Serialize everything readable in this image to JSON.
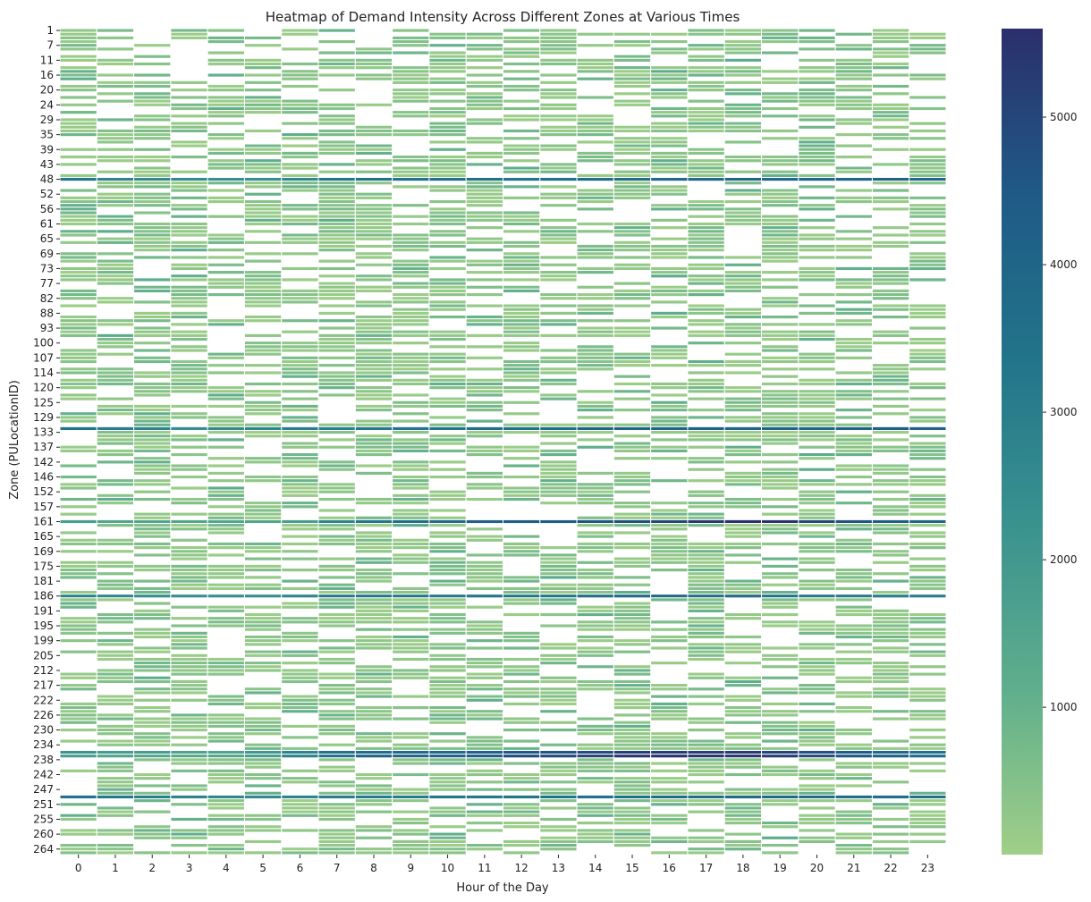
{
  "chart_data": {
    "type": "heatmap",
    "title": "Heatmap of Demand Intensity Across Different Zones at Various Times",
    "xlabel": "Hour of the Day",
    "ylabel": "Zone (PULocationID)",
    "x_categories": [
      "0",
      "1",
      "2",
      "3",
      "4",
      "5",
      "6",
      "7",
      "8",
      "9",
      "10",
      "11",
      "12",
      "13",
      "14",
      "15",
      "16",
      "17",
      "18",
      "19",
      "20",
      "21",
      "22",
      "23"
    ],
    "y_tick_labels": [
      "1",
      "7",
      "11",
      "16",
      "20",
      "24",
      "29",
      "35",
      "39",
      "43",
      "48",
      "52",
      "56",
      "61",
      "65",
      "69",
      "73",
      "77",
      "82",
      "88",
      "93",
      "100",
      "107",
      "114",
      "120",
      "125",
      "129",
      "133",
      "137",
      "142",
      "146",
      "152",
      "157",
      "161",
      "165",
      "169",
      "175",
      "181",
      "186",
      "191",
      "195",
      "199",
      "205",
      "212",
      "217",
      "222",
      "226",
      "230",
      "234",
      "238",
      "242",
      "247",
      "251",
      "255",
      "260",
      "264"
    ],
    "colorbar": {
      "min": 1,
      "max": 5600,
      "ticks": [
        "1000",
        "2000",
        "3000",
        "4000",
        "5000"
      ],
      "tick_values": [
        1000,
        2000,
        3000,
        4000,
        5000
      ],
      "colormap": "crest",
      "colors": [
        "#a0cf88",
        "#5fae8c",
        "#3a928f",
        "#22748a",
        "#1f5a86",
        "#2b2f6b"
      ]
    },
    "missing_color": "#ffffff",
    "grid_line_color": "#ffffff",
    "row_count": 222,
    "highlighted_rows": [
      {
        "zone": "48",
        "values_approx": [
          3200,
          2800,
          2600,
          2500,
          2400,
          2400,
          2700,
          3300,
          3500,
          3400,
          3500,
          3500,
          3300,
          3500,
          3600,
          3800,
          3800,
          3800,
          3900,
          3900,
          3900,
          3900,
          4100,
          4000
        ]
      },
      {
        "zone": "79",
        "values_approx": [
          4300,
          4100,
          3900,
          3700,
          3500,
          3400,
          3200,
          3000,
          3000,
          3000,
          3000,
          3000,
          3100,
          3100,
          3200,
          3200,
          3300,
          3400,
          3500,
          3700,
          3900,
          4000,
          4100,
          4200
        ]
      },
      {
        "zone": "132",
        "values_approx": [
          3400,
          3000,
          2800,
          2400,
          2600,
          2800,
          3000,
          3000,
          3200,
          3300,
          3400,
          3600,
          3500,
          3600,
          4000,
          4100,
          4100,
          4200,
          4000,
          4100,
          4000,
          4200,
          4300,
          4200
        ]
      },
      {
        "zone": "161",
        "values_approx": [
          1800,
          1500,
          1500,
          1500,
          1500,
          1500,
          1800,
          2800,
          3300,
          3600,
          3800,
          4200,
          4300,
          4400,
          4600,
          4800,
          5000,
          5400,
          5600,
          5500,
          5000,
          4700,
          4400,
          4000
        ]
      },
      {
        "zone": "186",
        "values_approx": [
          2900,
          2700,
          2400,
          2300,
          2300,
          2300,
          2700,
          3200,
          3300,
          3300,
          3200,
          3200,
          3300,
          3400,
          3600,
          3800,
          3900,
          3700,
          3800,
          3500,
          3200,
          3200,
          3000,
          3000
        ]
      },
      {
        "zone": "236",
        "values_approx": [
          2200,
          1900,
          1800,
          1600,
          1600,
          2000,
          2800,
          3500,
          3700,
          3800,
          3900,
          4200,
          4500,
          4600,
          4800,
          5200,
          5300,
          5300,
          5300,
          5000,
          4700,
          4400,
          3900,
          3500
        ]
      },
      {
        "zone": "237",
        "values_approx": [
          1800,
          1500,
          1500,
          1400,
          1500,
          1900,
          2800,
          3600,
          4000,
          4100,
          4300,
          4500,
          4800,
          4900,
          5100,
          5400,
          5500,
          5600,
          5500,
          5200,
          4900,
          4500,
          4200,
          3700
        ]
      },
      {
        "zone": "249",
        "values_approx": [
          3400,
          3200,
          3000,
          2800,
          2700,
          2600,
          2800,
          3000,
          3100,
          3100,
          3200,
          3200,
          3300,
          3400,
          3500,
          3600,
          3700,
          3700,
          3800,
          3900,
          3800,
          3700,
          3600,
          3500
        ]
      }
    ]
  }
}
